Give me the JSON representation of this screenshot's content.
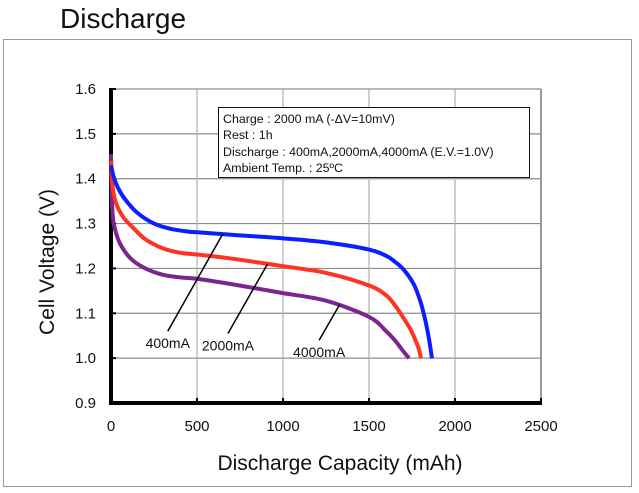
{
  "page": {
    "title": "Discharge"
  },
  "chart_data": {
    "type": "line",
    "title": "Discharge",
    "xlabel": "Discharge Capacity (mAh)",
    "ylabel": "Cell Voltage (V)",
    "xlim": [
      0,
      2500
    ],
    "ylim": [
      0.9,
      1.6
    ],
    "xticks": [
      0,
      500,
      1000,
      1500,
      2000,
      2500
    ],
    "xtick_labels": [
      "0",
      "500",
      "1000",
      "1500",
      "2000",
      "2500"
    ],
    "yticks": [
      0.9,
      1.0,
      1.1,
      1.2,
      1.3,
      1.4,
      1.5,
      1.6
    ],
    "ytick_labels": [
      "0.9",
      "1.0",
      "1.1",
      "1.2",
      "1.3",
      "1.4",
      "1.5",
      "1.6"
    ],
    "grid": true,
    "legend": "none",
    "annotation_box": {
      "position": "top-right",
      "lines": [
        "Charge : 2000 mA (-ΔV=10mV)",
        "Rest : 1h",
        "Discharge : 400mA,2000mA,4000mA (E.V.=1.0V)",
        "Ambient Temp. : 25ºC"
      ]
    },
    "series": [
      {
        "name": "400mA",
        "color": "#0a1eff",
        "x": [
          0,
          15,
          40,
          80,
          150,
          250,
          350,
          450,
          520,
          700,
          1000,
          1250,
          1500,
          1600,
          1650,
          1700,
          1760,
          1800,
          1830,
          1850,
          1866
        ],
        "y": [
          1.43,
          1.405,
          1.38,
          1.355,
          1.325,
          1.3,
          1.288,
          1.282,
          1.28,
          1.275,
          1.267,
          1.258,
          1.242,
          1.228,
          1.215,
          1.198,
          1.165,
          1.125,
          1.08,
          1.04,
          1.0
        ],
        "label_point": {
          "x": 650,
          "y": 1.277
        },
        "label_anchor": {
          "x": 330,
          "y": 1.06
        }
      },
      {
        "name": "2000mA",
        "color": "#ff3322",
        "x": [
          0,
          10,
          30,
          70,
          130,
          200,
          300,
          400,
          500,
          700,
          1000,
          1250,
          1500,
          1600,
          1650,
          1700,
          1740,
          1770,
          1790,
          1802
        ],
        "y": [
          1.44,
          1.38,
          1.345,
          1.315,
          1.29,
          1.265,
          1.245,
          1.235,
          1.231,
          1.222,
          1.205,
          1.19,
          1.162,
          1.14,
          1.118,
          1.09,
          1.065,
          1.04,
          1.02,
          1.0
        ],
        "label_point": {
          "x": 910,
          "y": 1.21
        },
        "label_anchor": {
          "x": 680,
          "y": 1.055
        }
      },
      {
        "name": "4000mA",
        "color": "#7b2590",
        "x": [
          0,
          8,
          25,
          60,
          120,
          200,
          300,
          400,
          500,
          700,
          1000,
          1250,
          1500,
          1600,
          1650,
          1690,
          1715,
          1733
        ],
        "y": [
          1.455,
          1.33,
          1.285,
          1.25,
          1.22,
          1.2,
          1.186,
          1.18,
          1.177,
          1.165,
          1.145,
          1.128,
          1.092,
          1.06,
          1.04,
          1.02,
          1.008,
          1.0
        ],
        "label_point": {
          "x": 1330,
          "y": 1.12
        },
        "label_anchor": {
          "x": 1210,
          "y": 1.04
        }
      }
    ]
  }
}
